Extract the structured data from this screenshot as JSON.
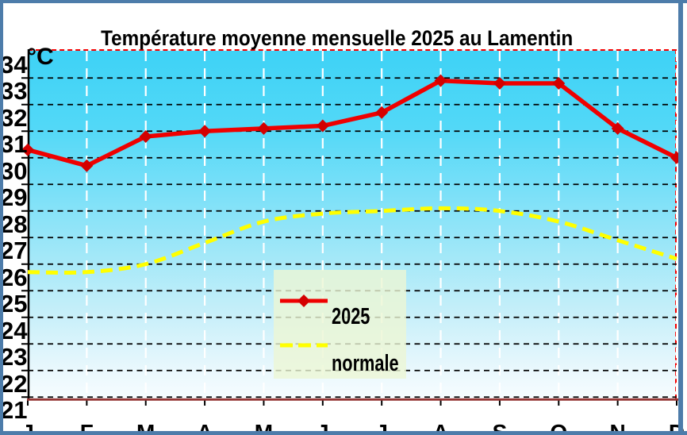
{
  "chart_data": {
    "type": "line",
    "title": "Température moyenne mensuelle 2025 au Lamentin",
    "y_unit_label": "°C",
    "categories": [
      "J",
      "F",
      "M",
      "A",
      "M",
      "J",
      "J",
      "A",
      "S",
      "O",
      "N",
      "D"
    ],
    "y_ticks": [
      21,
      22,
      23,
      24,
      25,
      26,
      27,
      28,
      29,
      30,
      31,
      32,
      33,
      34
    ],
    "ylim": [
      21,
      34
    ],
    "series": [
      {
        "name": "2025",
        "style": "solid-diamond",
        "color": "#ef0000",
        "marker_color": "#d40000",
        "values": [
          30.8,
          30.2,
          31.3,
          31.5,
          31.6,
          31.7,
          32.2,
          33.4,
          33.3,
          33.3,
          31.6,
          30.5
        ]
      },
      {
        "name": "normale",
        "style": "dashed-smooth",
        "color": "#ffff00",
        "values": [
          26.2,
          26.2,
          26.5,
          27.3,
          28.1,
          28.4,
          28.5,
          28.6,
          28.5,
          28.1,
          27.4,
          26.7
        ]
      }
    ],
    "legend": {
      "position": "center",
      "entries": [
        "2025",
        "normale"
      ],
      "background": "rgba(236,246,213,0.8)"
    },
    "grid": {
      "horizontal": "on",
      "horizontal_color": "#000000",
      "vertical": "on",
      "vertical_color": "#ffffff"
    },
    "axes": {
      "x_axis_color": "#943634",
      "y_axis_color": "#000000",
      "plot_border_color": "#f40000"
    },
    "plot_background": {
      "top": "#3ed2f6",
      "bottom": "#f7fdfe"
    },
    "frame_color": "#4d7caa"
  }
}
